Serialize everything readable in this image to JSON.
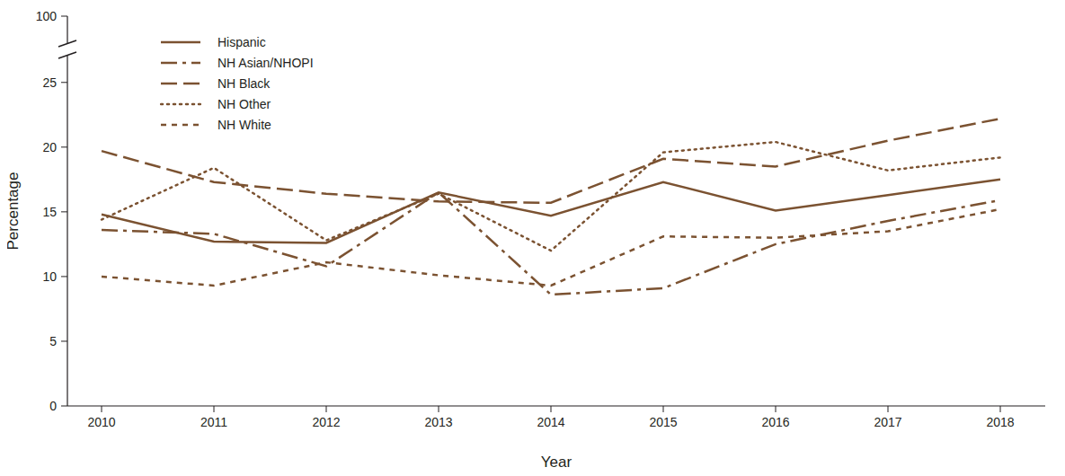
{
  "chart_data": {
    "type": "line",
    "x_label": "Year",
    "y_label": "Percentage",
    "categories": [
      "2010",
      "2011",
      "2012",
      "2013",
      "2014",
      "2015",
      "2016",
      "2017",
      "2018"
    ],
    "series": [
      {
        "name": "Hispanic",
        "color": "#7b5231",
        "line_style": "solid",
        "values": [
          14.8,
          12.7,
          12.6,
          16.5,
          14.7,
          17.3,
          15.1,
          16.3,
          17.5
        ]
      },
      {
        "name": "NH Asian/NHOPI",
        "color": "#7b5231",
        "line_style": "dash_dot",
        "values": [
          13.6,
          13.3,
          10.8,
          16.5,
          8.6,
          9.1,
          12.5,
          14.3,
          15.9
        ]
      },
      {
        "name": "NH Black",
        "color": "#7b5231",
        "line_style": "long_dash",
        "values": [
          19.7,
          17.3,
          16.4,
          15.8,
          15.7,
          19.1,
          18.5,
          20.5,
          22.2
        ]
      },
      {
        "name": "NH Other",
        "color": "#7b5231",
        "line_style": "dotted",
        "values": [
          14.4,
          18.4,
          12.8,
          16.4,
          12.0,
          19.6,
          20.4,
          18.2,
          19.2
        ]
      },
      {
        "name": "NH White",
        "color": "#7b5231",
        "line_style": "dashed",
        "values": [
          10.0,
          9.3,
          11.1,
          10.1,
          9.3,
          13.1,
          13.0,
          13.5,
          15.2
        ]
      }
    ],
    "ylim": [
      0,
      100
    ],
    "yticks": [
      0,
      5,
      10,
      15,
      20,
      25,
      100
    ],
    "grid": false,
    "legend": "upper left"
  }
}
